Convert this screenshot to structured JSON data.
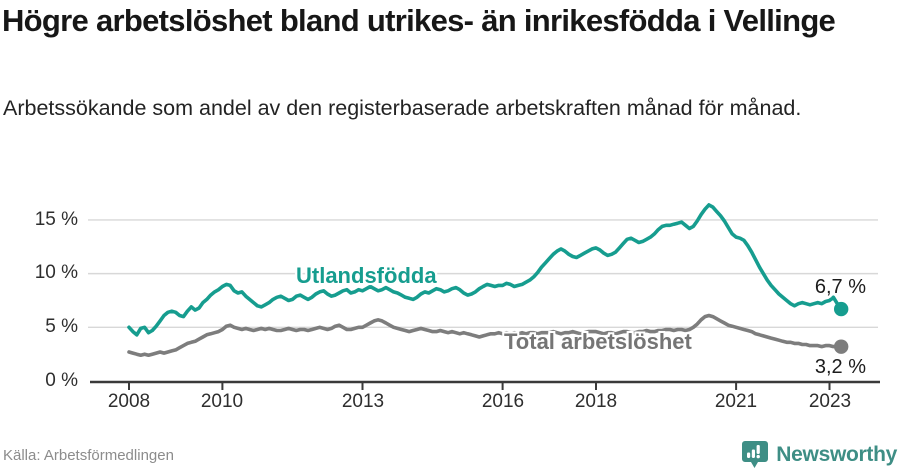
{
  "header": {
    "title": "Högre arbetslöshet bland utrikes- än inrikesfödda i Vellinge",
    "subtitle": "Arbetssökande som andel av den registerbaserade arbetskraften månad för månad."
  },
  "chart_data": {
    "type": "line",
    "title": "Högre arbetslöshet bland utrikes- än inrikesfödda i Vellinge",
    "subtitle": "Arbetssökande som andel av den registerbaserade arbetskraften månad för månad.",
    "x_unit": "monthly, Jan 2008 – Apr 2023",
    "x_start_year": 2008.0,
    "x_step_years": 0.0833,
    "x_tick_years": [
      2008,
      2010,
      2013,
      2016,
      2018,
      2021,
      2023
    ],
    "x_tick_labels": [
      "2008",
      "2010",
      "2013",
      "2016",
      "2018",
      "2021",
      "2023"
    ],
    "y_ticks": [
      0,
      5,
      10,
      15
    ],
    "y_tick_labels": [
      "0 %",
      "5 %",
      "10 %",
      "15 %"
    ],
    "ylim": [
      0,
      17
    ],
    "grid": "horizontal",
    "legend_position": "inline-labels",
    "series": [
      {
        "name": "Utlandsfödda",
        "color": "#169d8f",
        "end_label": "6,7 %",
        "end_value": 6.7,
        "values": [
          5.0,
          4.6,
          4.3,
          4.9,
          5.0,
          4.5,
          4.7,
          5.1,
          5.6,
          6.1,
          6.4,
          6.5,
          6.4,
          6.1,
          6.0,
          6.5,
          6.9,
          6.6,
          6.8,
          7.3,
          7.6,
          8.0,
          8.3,
          8.5,
          8.8,
          9.0,
          8.9,
          8.4,
          8.2,
          8.3,
          7.9,
          7.6,
          7.3,
          7.0,
          6.9,
          7.1,
          7.3,
          7.6,
          7.8,
          7.9,
          7.7,
          7.5,
          7.6,
          7.9,
          8.0,
          7.8,
          7.6,
          7.8,
          8.1,
          8.3,
          8.4,
          8.1,
          7.9,
          8.0,
          8.2,
          8.4,
          8.5,
          8.2,
          8.3,
          8.5,
          8.4,
          8.6,
          8.8,
          8.6,
          8.4,
          8.5,
          8.7,
          8.5,
          8.3,
          8.2,
          8.0,
          7.8,
          7.7,
          7.6,
          7.8,
          8.1,
          8.3,
          8.2,
          8.4,
          8.6,
          8.5,
          8.3,
          8.4,
          8.6,
          8.7,
          8.5,
          8.2,
          8.0,
          8.1,
          8.3,
          8.6,
          8.8,
          9.0,
          8.9,
          8.8,
          8.9,
          8.9,
          9.1,
          9.0,
          8.8,
          8.9,
          9.0,
          9.2,
          9.4,
          9.7,
          10.1,
          10.6,
          11.0,
          11.4,
          11.8,
          12.1,
          12.3,
          12.1,
          11.8,
          11.6,
          11.5,
          11.7,
          11.9,
          12.1,
          12.3,
          12.4,
          12.2,
          11.9,
          11.7,
          11.8,
          12.0,
          12.4,
          12.8,
          13.2,
          13.3,
          13.1,
          12.9,
          13.0,
          13.2,
          13.4,
          13.7,
          14.1,
          14.4,
          14.5,
          14.5,
          14.6,
          14.7,
          14.8,
          14.5,
          14.2,
          14.4,
          14.9,
          15.5,
          16.0,
          16.4,
          16.2,
          15.8,
          15.4,
          14.9,
          14.3,
          13.7,
          13.4,
          13.3,
          13.1,
          12.6,
          12.0,
          11.3,
          10.6,
          10.0,
          9.4,
          8.9,
          8.5,
          8.1,
          7.8,
          7.5,
          7.2,
          7.0,
          7.2,
          7.3,
          7.2,
          7.1,
          7.2,
          7.3,
          7.2,
          7.4,
          7.5,
          7.8,
          7.2,
          6.7
        ]
      },
      {
        "name": "Total arbetslöshet",
        "color": "#7d7d7d",
        "end_label": "3,2 %",
        "end_value": 3.2,
        "values": [
          2.7,
          2.6,
          2.5,
          2.4,
          2.5,
          2.4,
          2.5,
          2.6,
          2.7,
          2.6,
          2.7,
          2.8,
          2.9,
          3.1,
          3.3,
          3.5,
          3.6,
          3.7,
          3.9,
          4.1,
          4.3,
          4.4,
          4.5,
          4.6,
          4.8,
          5.1,
          5.2,
          5.0,
          4.9,
          4.8,
          4.9,
          4.8,
          4.7,
          4.8,
          4.9,
          4.8,
          4.9,
          4.8,
          4.7,
          4.7,
          4.8,
          4.9,
          4.8,
          4.7,
          4.8,
          4.8,
          4.7,
          4.8,
          4.9,
          5.0,
          4.9,
          4.8,
          4.9,
          5.1,
          5.2,
          5.0,
          4.8,
          4.8,
          4.9,
          5.0,
          5.0,
          5.2,
          5.4,
          5.6,
          5.7,
          5.6,
          5.4,
          5.2,
          5.0,
          4.9,
          4.8,
          4.7,
          4.6,
          4.7,
          4.8,
          4.9,
          4.8,
          4.7,
          4.6,
          4.6,
          4.7,
          4.6,
          4.5,
          4.6,
          4.5,
          4.4,
          4.5,
          4.4,
          4.3,
          4.2,
          4.1,
          4.2,
          4.3,
          4.4,
          4.4,
          4.5,
          4.4,
          4.5,
          4.4,
          4.5,
          4.4,
          4.5,
          4.4,
          4.5,
          4.5,
          4.4,
          4.5,
          4.5,
          4.5,
          4.6,
          4.5,
          4.4,
          4.5,
          4.5,
          4.6,
          4.5,
          4.4,
          4.5,
          4.6,
          4.6,
          4.6,
          4.5,
          4.4,
          4.5,
          4.5,
          4.4,
          4.5,
          4.6,
          4.6,
          4.5,
          4.5,
          4.6,
          4.6,
          4.7,
          4.6,
          4.6,
          4.7,
          4.7,
          4.8,
          4.8,
          4.7,
          4.8,
          4.8,
          4.7,
          4.8,
          5.0,
          5.3,
          5.7,
          6.0,
          6.1,
          6.0,
          5.8,
          5.6,
          5.4,
          5.2,
          5.1,
          5.0,
          4.9,
          4.8,
          4.7,
          4.6,
          4.4,
          4.3,
          4.2,
          4.1,
          4.0,
          3.9,
          3.8,
          3.7,
          3.6,
          3.6,
          3.5,
          3.5,
          3.4,
          3.4,
          3.3,
          3.3,
          3.3,
          3.2,
          3.3,
          3.3,
          3.2,
          3.2,
          3.2
        ]
      }
    ]
  },
  "footer": {
    "source": "Källa: Arbetsförmedlingen",
    "brand": "Newsworthy"
  },
  "colors": {
    "accent_teal": "#169d8f",
    "line_gray": "#7d7d7d",
    "brand_teal": "#3e8e85",
    "gridline": "#d8d8d8",
    "axis": "#3a3a3a"
  }
}
